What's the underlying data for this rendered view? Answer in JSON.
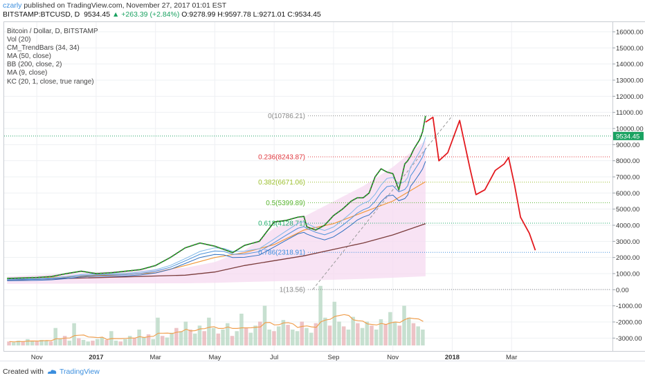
{
  "header": {
    "user": "czarly",
    "published_text": " published on TradingView.com, November 27, 2017 01:01 EST",
    "symbol": "BITSTAMP:BTCUSD, D",
    "price": "9534.45",
    "change": "▲ +263.39 (+2.84%)",
    "open_label": "O:",
    "open": "9278.99",
    "high_label": "H:",
    "high": "9597.78",
    "low_label": "L:",
    "low": "9271.01",
    "close_label": "C:",
    "close": "9534.45"
  },
  "legend": {
    "items": [
      "Bitcoin / Dollar, D, BITSTAMP",
      "Vol (20)",
      "CM_TrendBars (34, 34)",
      "MA (50, close)",
      "BB (200, close, 2)",
      "MA (9, close)",
      "KC (20, 1, close, true range)"
    ]
  },
  "footer": {
    "created_with": "Created with",
    "brand": "TradingView"
  },
  "chart_data": {
    "type": "line",
    "title": "Bitcoin / Dollar, D, BITSTAMP",
    "y_ticks": [
      16000,
      15000,
      14000,
      13000,
      12000,
      11000,
      10000,
      9000,
      8000,
      7000,
      6000,
      5000,
      4000,
      3000,
      2000,
      1000,
      0,
      -1000,
      -2000,
      -3000
    ],
    "y_tick_labels": [
      "16000.00",
      "15000.00",
      "14000.00",
      "13000.00",
      "12000.00",
      "11000.00",
      "10000.00",
      "9000.00",
      "8000.00",
      "7000.00",
      "6000.00",
      "5000.00",
      "4000.00",
      "3000.00",
      "2000.00",
      "1000.00",
      "0.00",
      "-1000.00",
      "-2000.00",
      "-3000.00"
    ],
    "ylim": [
      -3800,
      16600
    ],
    "x_ticks": [
      "Nov",
      "2017",
      "Mar",
      "May",
      "Jul",
      "Sep",
      "Nov",
      "2018",
      "Mar"
    ],
    "x_tick_months": [
      1,
      3,
      5,
      7,
      9,
      11,
      13,
      15,
      17
    ],
    "xlim_months": [
      -0.1,
      20.4
    ],
    "current_price": {
      "value": 9534.45,
      "label": "9534.45"
    },
    "fibonacci": {
      "levels": [
        {
          "label": "0(10786.21)",
          "value": 10786.21,
          "color": "#888888"
        },
        {
          "label": "0.236(8243.87)",
          "value": 8243.87,
          "color": "#e0383e"
        },
        {
          "label": "0.382(6671.06)",
          "value": 6671.06,
          "color": "#9bbf2c"
        },
        {
          "label": "0.5(5399.89)",
          "value": 5399.89,
          "color": "#55b32c"
        },
        {
          "label": "0.618(4128.71)",
          "value": 4128.71,
          "color": "#1fae6b"
        },
        {
          "label": "0.786(2318.91)",
          "value": 2318.91,
          "color": "#3b8ede"
        },
        {
          "label": "1(13.56)",
          "value": 13.56,
          "color": "#888888"
        }
      ],
      "trend_line": {
        "start": [
          10.3,
          13.56
        ],
        "end": [
          15.0,
          10786.21
        ]
      }
    },
    "price_series": {
      "name": "",
      "x": [
        0.0,
        0.5,
        1.0,
        1.5,
        2.0,
        2.5,
        3.0,
        3.5,
        4.0,
        4.5,
        5.0,
        5.5,
        6.0,
        6.5,
        7.0,
        7.3,
        7.6,
        8.0,
        8.5,
        9.0,
        9.4,
        9.8,
        10.0,
        10.1,
        10.4,
        10.7,
        11.0,
        11.3,
        11.6,
        11.8,
        12.0,
        12.2,
        12.4,
        12.6,
        12.8,
        13.0,
        13.2,
        13.4,
        13.5,
        13.6,
        13.7,
        13.8,
        13.9,
        14.0,
        14.1
      ],
      "values": [
        700,
        730,
        760,
        820,
        1000,
        1150,
        1000,
        1050,
        1150,
        1250,
        1500,
        2000,
        2600,
        2900,
        2700,
        2500,
        2300,
        2750,
        3000,
        4200,
        4300,
        4500,
        4550,
        3900,
        3700,
        4000,
        4600,
        5000,
        5500,
        5700,
        5700,
        6000,
        7000,
        7500,
        7300,
        7200,
        6200,
        7800,
        8000,
        8300,
        8700,
        9000,
        9300,
        9800,
        10786.21
      ]
    },
    "projection": {
      "x": [
        14.1,
        14.35,
        14.55,
        14.85,
        15.25,
        15.6,
        15.8,
        16.1,
        16.45,
        16.75,
        16.9,
        17.1,
        17.3,
        17.6,
        17.8
      ],
      "values": [
        10400,
        10700,
        8000,
        8500,
        10500,
        7500,
        5900,
        6200,
        7400,
        7800,
        8200,
        6500,
        4500,
        3500,
        2450
      ]
    },
    "ma_50": {
      "x": [
        0,
        2,
        4,
        5,
        6,
        7,
        8,
        9,
        10,
        11,
        12,
        13,
        14.1
      ],
      "values": [
        700,
        800,
        950,
        1050,
        1500,
        2000,
        2300,
        2800,
        3700,
        4100,
        4800,
        5500,
        6700
      ]
    },
    "bb_basis": {
      "x": [
        0,
        2,
        4,
        6,
        7,
        8,
        9,
        10,
        11,
        12,
        13,
        14.1
      ],
      "values": [
        600,
        700,
        800,
        900,
        1100,
        1500,
        1800,
        2100,
        2500,
        2900,
        3400,
        4100
      ]
    },
    "volume": {
      "ylim": [
        0,
        1
      ],
      "values": [
        0.05,
        0.04,
        0.06,
        0.05,
        0.08,
        0.06,
        0.05,
        0.07,
        0.06,
        0.05,
        0.22,
        0.08,
        0.12,
        0.06,
        0.28,
        0.09,
        0.07,
        0.05,
        0.06,
        0.08,
        0.1,
        0.07,
        0.18,
        0.06,
        0.05,
        0.08,
        0.12,
        0.09,
        0.2,
        0.1,
        0.14,
        0.08,
        0.35,
        0.12,
        0.1,
        0.16,
        0.22,
        0.18,
        0.3,
        0.2,
        0.15,
        0.25,
        0.18,
        0.35,
        0.22,
        0.15,
        0.2,
        0.28,
        0.12,
        0.18,
        0.4,
        0.22,
        0.16,
        0.25,
        0.3,
        0.5,
        0.2,
        0.18,
        0.24,
        0.32,
        0.26,
        0.2,
        0.18,
        0.3,
        0.22,
        0.16,
        0.28,
        0.75,
        0.35,
        0.25,
        0.55,
        0.3,
        0.24,
        0.2,
        0.36,
        0.28,
        0.22,
        0.3,
        0.25,
        0.2,
        0.33,
        0.27,
        0.42,
        0.3,
        0.25,
        0.5,
        0.35,
        0.28,
        0.24,
        0.2
      ]
    }
  }
}
